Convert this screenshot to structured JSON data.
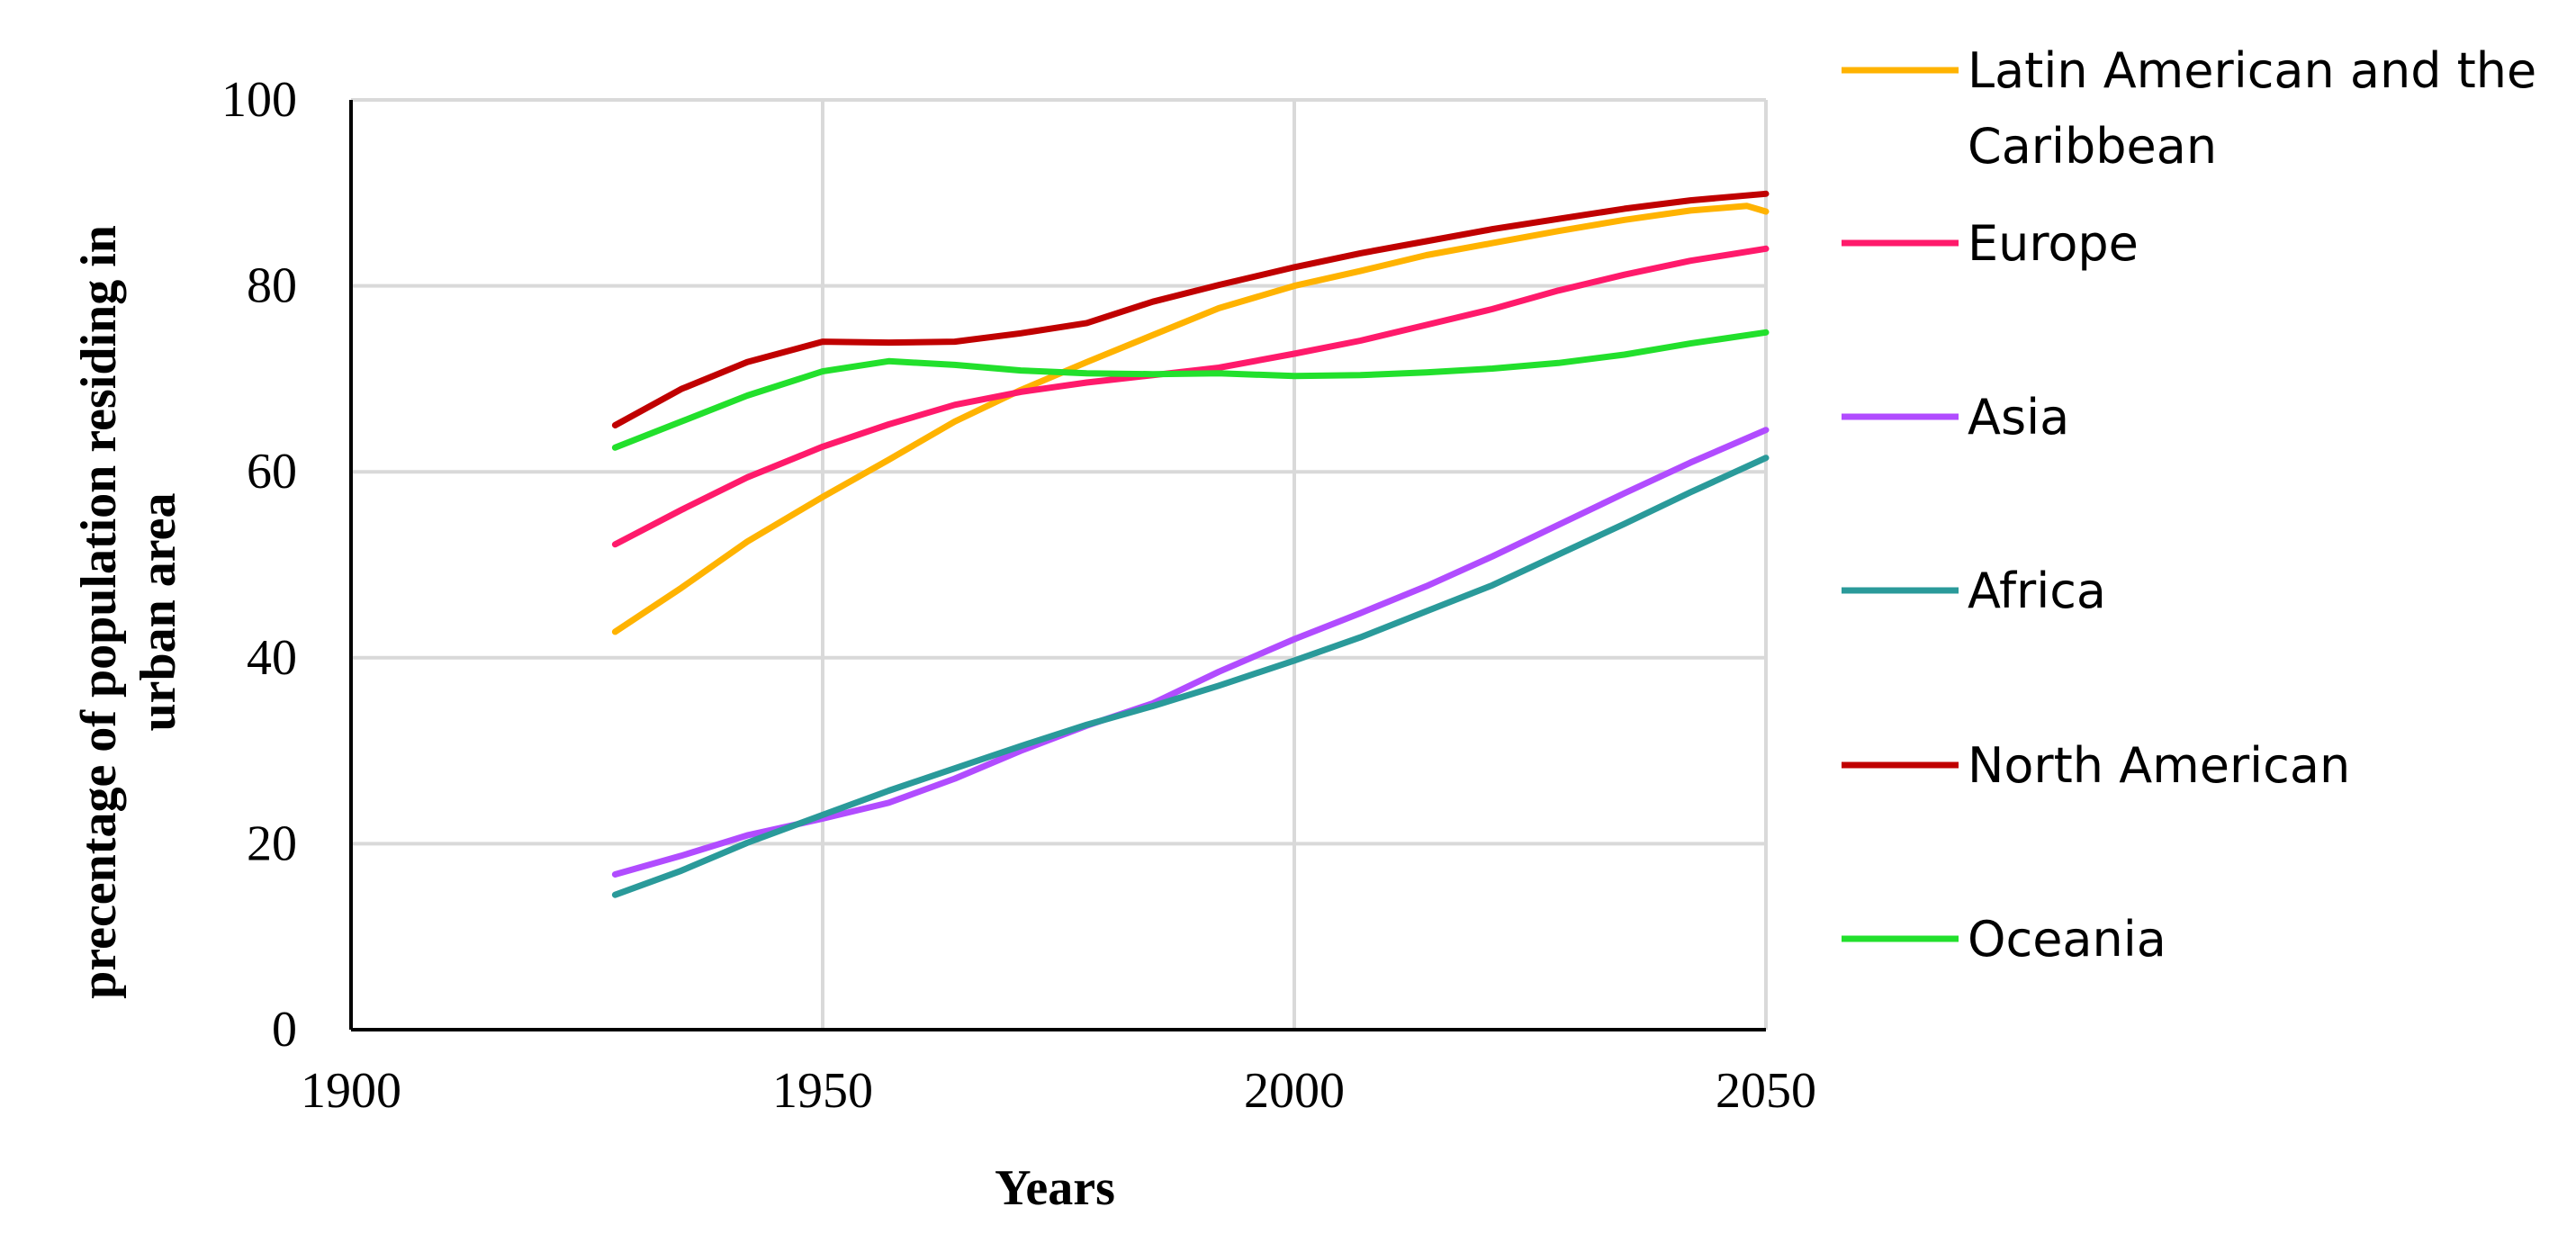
{
  "chart_data": {
    "type": "line",
    "title": "",
    "xlabel": "Years",
    "ylabel": [
      "precentage of population residing in",
      "urban area"
    ],
    "xlim": [
      1900,
      2050
    ],
    "ylim": [
      0,
      100
    ],
    "xticks": [
      1900,
      1950,
      2000,
      2050
    ],
    "yticks": [
      0,
      20,
      40,
      60,
      80,
      100
    ],
    "grid": true,
    "legend_position": "right",
    "series": [
      {
        "name": "Latin American and the Caribbean",
        "label_lines": [
          "Latin American and the",
          "Caribbean"
        ],
        "color": "#FFB300",
        "x": [
          1928,
          1935,
          1942,
          1950,
          1957,
          1964,
          1971,
          1978,
          1985,
          1992,
          2000,
          2007,
          2014,
          2021,
          2028,
          2035,
          2042,
          2048,
          2050
        ],
        "y": [
          42.8,
          47.5,
          52.5,
          57.3,
          61.3,
          65.4,
          68.8,
          71.8,
          74.7,
          77.6,
          80.0,
          81.6,
          83.3,
          84.6,
          85.9,
          87.1,
          88.1,
          88.6,
          88.0
        ]
      },
      {
        "name": "Europe",
        "label_lines": [
          "Europe"
        ],
        "color": "#FF1A6B",
        "x": [
          1928,
          1935,
          1942,
          1950,
          1957,
          1964,
          1971,
          1978,
          1985,
          1992,
          2000,
          2007,
          2014,
          2021,
          2028,
          2035,
          2042,
          2050
        ],
        "y": [
          52.2,
          55.9,
          59.4,
          62.7,
          65.1,
          67.2,
          68.6,
          69.6,
          70.4,
          71.2,
          72.7,
          74.1,
          75.8,
          77.5,
          79.5,
          81.2,
          82.7,
          84.0
        ]
      },
      {
        "name": "Asia",
        "label_lines": [
          "Asia"
        ],
        "color": "#B14CFF",
        "x": [
          1928,
          1935,
          1942,
          1950,
          1957,
          1964,
          1971,
          1978,
          1985,
          1992,
          2000,
          2007,
          2014,
          2021,
          2028,
          2035,
          2042,
          2050
        ],
        "y": [
          16.7,
          18.7,
          20.9,
          22.7,
          24.4,
          27.0,
          30.0,
          32.7,
          35.1,
          38.5,
          42.0,
          44.8,
          47.7,
          50.9,
          54.3,
          57.7,
          61.0,
          64.5
        ]
      },
      {
        "name": "Africa",
        "label_lines": [
          "Africa"
        ],
        "color": "#2A9A9A",
        "x": [
          1928,
          1935,
          1942,
          1950,
          1957,
          1964,
          1971,
          1978,
          1985,
          1992,
          2000,
          2007,
          2014,
          2021,
          2028,
          2035,
          2042,
          2050
        ],
        "y": [
          14.5,
          17.1,
          20.1,
          23.1,
          25.7,
          28.1,
          30.5,
          32.8,
          34.8,
          37.0,
          39.7,
          42.2,
          45.0,
          47.8,
          51.1,
          54.4,
          57.8,
          61.5
        ]
      },
      {
        "name": "North American",
        "label_lines": [
          "North American"
        ],
        "color": "#C00000",
        "x": [
          1928,
          1935,
          1942,
          1950,
          1957,
          1964,
          1971,
          1978,
          1985,
          1992,
          2000,
          2007,
          2014,
          2021,
          2028,
          2035,
          2042,
          2050
        ],
        "y": [
          65.0,
          68.9,
          71.8,
          74.0,
          73.9,
          74.0,
          74.9,
          76.0,
          78.3,
          80.1,
          82.0,
          83.5,
          84.8,
          86.1,
          87.2,
          88.3,
          89.2,
          89.9
        ]
      },
      {
        "name": "Oceania",
        "label_lines": [
          "Oceania"
        ],
        "color": "#22E02C",
        "x": [
          1928,
          1935,
          1942,
          1950,
          1957,
          1964,
          1971,
          1978,
          1985,
          1992,
          2000,
          2007,
          2014,
          2021,
          2028,
          2035,
          2042,
          2050
        ],
        "y": [
          62.6,
          65.4,
          68.2,
          70.8,
          71.9,
          71.5,
          70.9,
          70.6,
          70.5,
          70.6,
          70.3,
          70.4,
          70.7,
          71.1,
          71.7,
          72.6,
          73.8,
          75.0
        ]
      }
    ]
  }
}
